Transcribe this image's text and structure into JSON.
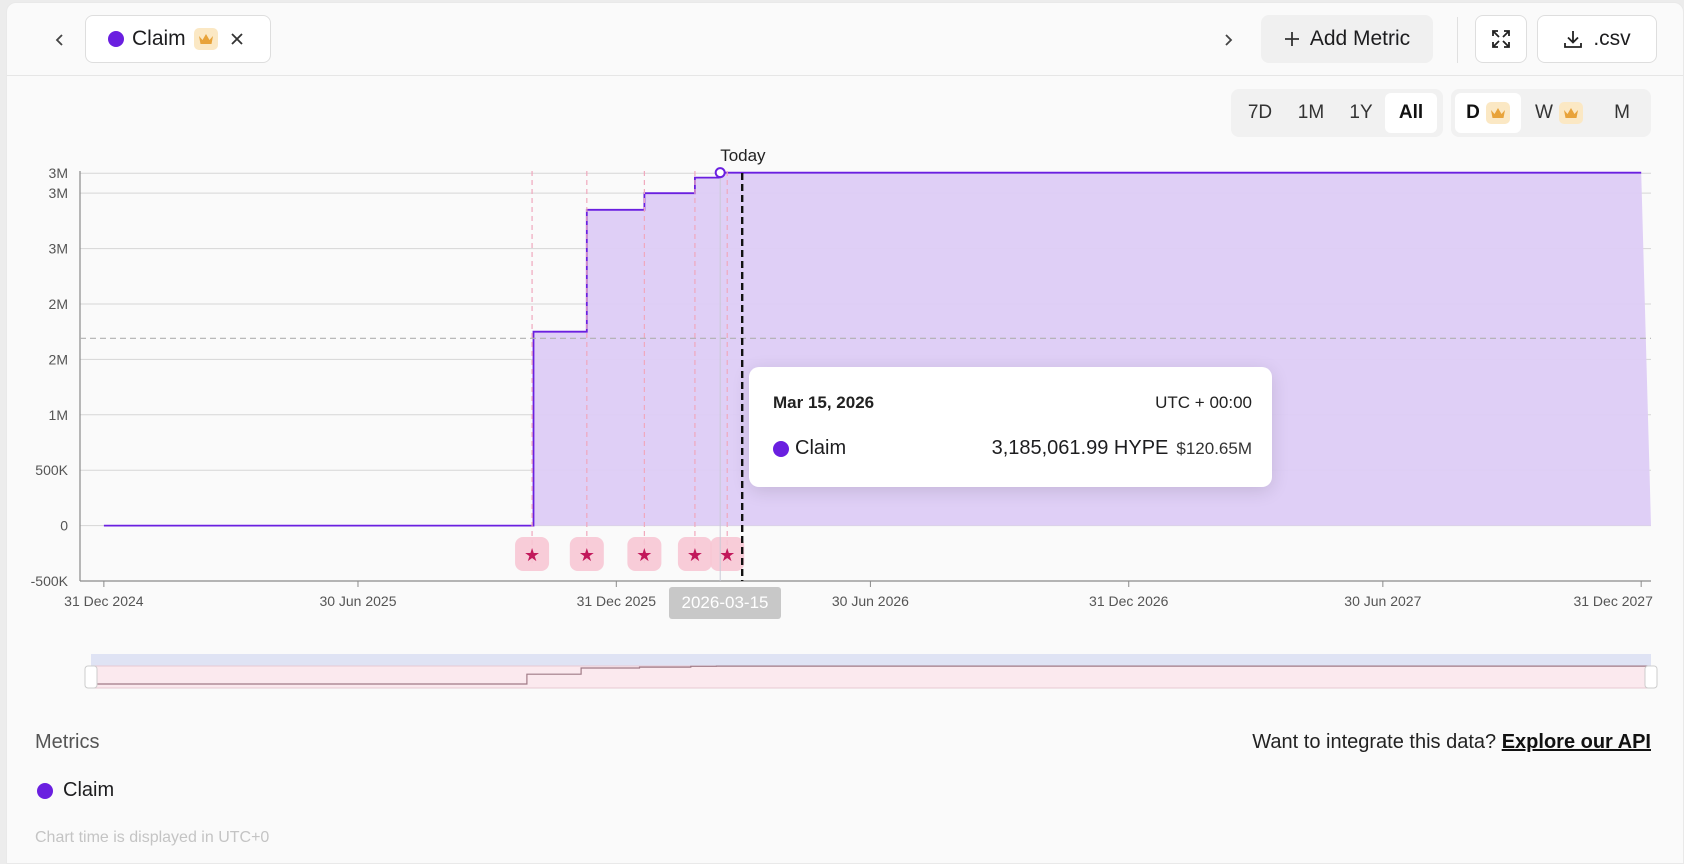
{
  "header": {
    "metric_chip_label": "Claim",
    "add_metric_label": "Add Metric",
    "csv_label": ".csv"
  },
  "range_tabs": [
    {
      "label": "7D",
      "active": false
    },
    {
      "label": "1M",
      "active": false
    },
    {
      "label": "1Y",
      "active": false
    },
    {
      "label": "All",
      "active": true
    }
  ],
  "interval_tabs": [
    {
      "label": "D",
      "premium": true
    },
    {
      "label": "W",
      "premium": true
    },
    {
      "label": "M",
      "premium": false
    }
  ],
  "chart_data": {
    "type": "area",
    "step": true,
    "series": [
      {
        "name": "Claim",
        "color": "#6a1fe0",
        "fill": "#ddccf6",
        "x": [
          "2024-12-31",
          "2025-11-01",
          "2025-11-02",
          "2025-12-10",
          "2026-01-20",
          "2026-02-25",
          "2026-03-15",
          "2027-12-31"
        ],
        "y": [
          0,
          0,
          1750000,
          2850000,
          3000000,
          3140000,
          3185061.99,
          3185061.99
        ]
      }
    ],
    "x_ticks": [
      "31 Dec 2024",
      "30 Jun 2025",
      "31 Dec 2025",
      "30 Jun 2026",
      "31 Dec 2026",
      "30 Jun 2027",
      "31 Dec 2027"
    ],
    "y_ticks": [
      "-500K",
      "0",
      "500K",
      "1M",
      "2M",
      "2M",
      "3M",
      "3M",
      "3M"
    ],
    "ylim": [
      -500000,
      3200000
    ],
    "reference_line": {
      "label": "Today",
      "x": "2026-03-15"
    },
    "dashed_level": 1690000,
    "event_dates": [
      "2025-11-01",
      "2025-12-10",
      "2026-01-20",
      "2026-02-25",
      "2026-03-20"
    ],
    "crosshair_date": "2026-03-15",
    "grid": true
  },
  "tooltip": {
    "date": "Mar 15, 2026",
    "timezone": "UTC + 00:00",
    "series_name": "Claim",
    "value": "3,185,061.99 HYPE",
    "usd": "$120.65M"
  },
  "crosshair_badge": "2026-03-15",
  "footer": {
    "metrics_title": "Metrics",
    "api_prompt": "Want to integrate this data?",
    "api_link": "Explore our API",
    "metric_label": "Claim",
    "footnote": "Chart time is displayed in UTC+0"
  },
  "colors": {
    "accent": "#6a1fe0",
    "area_fill": "#ddccf6",
    "event_marker": "#c2185b",
    "crown": "#e8a33a"
  }
}
